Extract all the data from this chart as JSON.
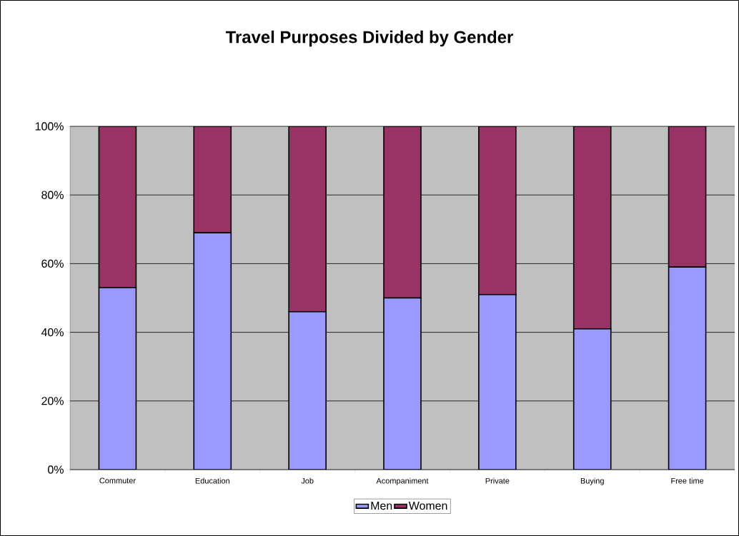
{
  "chart_data": {
    "type": "bar",
    "title": "Travel Purposes Divided by Gender",
    "stacked": true,
    "categories": [
      "Commuter",
      "Education",
      "Job",
      "Acompaniment",
      "Private",
      "Buying",
      "Free time"
    ],
    "series": [
      {
        "name": "Men",
        "color": "#9999ff",
        "values": [
          53,
          69,
          46,
          50,
          51,
          41,
          59
        ]
      },
      {
        "name": "Women",
        "color": "#993366",
        "values": [
          47,
          31,
          54,
          50,
          49,
          59,
          41
        ]
      }
    ],
    "ylim": [
      0,
      100
    ],
    "yticks": [
      {
        "value": 0,
        "label": "0%"
      },
      {
        "value": 20,
        "label": "20%"
      },
      {
        "value": 40,
        "label": "40%"
      },
      {
        "value": 60,
        "label": "60%"
      },
      {
        "value": 80,
        "label": "80%"
      },
      {
        "value": 100,
        "label": "100%"
      }
    ],
    "grid": "y",
    "legend": "bottom"
  }
}
